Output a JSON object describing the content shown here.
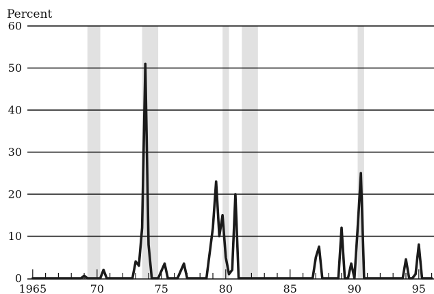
{
  "chart_data": {
    "type": "line",
    "title": "",
    "ylabel": "Percent",
    "xlabel": "",
    "xlim": [
      1965.0,
      1996.0
    ],
    "ylim": [
      0,
      60
    ],
    "y_ticks": [
      0,
      10,
      20,
      30,
      40,
      50,
      60
    ],
    "x_ticks": [
      {
        "value": 1965,
        "label": "1965"
      },
      {
        "value": 1970,
        "label": "70"
      },
      {
        "value": 1975,
        "label": "75"
      },
      {
        "value": 1980,
        "label": "80"
      },
      {
        "value": 1985,
        "label": "85"
      },
      {
        "value": 1990,
        "label": "90"
      },
      {
        "value": 1995,
        "label": "95"
      }
    ],
    "grid": {
      "horizontal": true,
      "vertical": false
    },
    "recessions": [
      [
        1969.25,
        1970.25
      ],
      [
        1973.5,
        1974.75
      ],
      [
        1979.75,
        1980.25
      ],
      [
        1981.25,
        1982.5
      ],
      [
        1990.25,
        1990.75
      ]
    ],
    "series": [
      {
        "points": [
          [
            1965.0,
            0
          ],
          [
            1967.0,
            0
          ],
          [
            1967.5,
            0
          ],
          [
            1968.0,
            0
          ],
          [
            1968.75,
            0
          ],
          [
            1969.0,
            0.6
          ],
          [
            1969.25,
            0
          ],
          [
            1970.0,
            0
          ],
          [
            1970.25,
            0
          ],
          [
            1970.5,
            2
          ],
          [
            1970.75,
            0
          ],
          [
            1971.5,
            0
          ],
          [
            1972.5,
            0
          ],
          [
            1972.75,
            0
          ],
          [
            1973.0,
            4
          ],
          [
            1973.25,
            3
          ],
          [
            1973.5,
            12
          ],
          [
            1973.75,
            51
          ],
          [
            1974.0,
            8
          ],
          [
            1974.25,
            0
          ],
          [
            1974.75,
            0
          ],
          [
            1975.25,
            3.5
          ],
          [
            1975.5,
            0
          ],
          [
            1976.25,
            0
          ],
          [
            1976.75,
            3.5
          ],
          [
            1977.0,
            0
          ],
          [
            1978.25,
            0
          ],
          [
            1978.5,
            0
          ],
          [
            1979.0,
            12
          ],
          [
            1979.25,
            23
          ],
          [
            1979.5,
            10
          ],
          [
            1979.75,
            15
          ],
          [
            1980.0,
            5
          ],
          [
            1980.25,
            1
          ],
          [
            1980.5,
            2
          ],
          [
            1980.75,
            20
          ],
          [
            1981.0,
            0
          ],
          [
            1982.0,
            0
          ],
          [
            1984.0,
            0
          ],
          [
            1986.5,
            0
          ],
          [
            1986.75,
            0
          ],
          [
            1987.0,
            5
          ],
          [
            1987.25,
            7.5
          ],
          [
            1987.5,
            0
          ],
          [
            1988.0,
            0
          ],
          [
            1988.5,
            0
          ],
          [
            1988.75,
            0
          ],
          [
            1989.0,
            12
          ],
          [
            1989.25,
            0
          ],
          [
            1989.5,
            0
          ],
          [
            1989.75,
            3.5
          ],
          [
            1990.0,
            0
          ],
          [
            1990.25,
            12
          ],
          [
            1990.5,
            25
          ],
          [
            1990.75,
            0
          ],
          [
            1992.0,
            0
          ],
          [
            1993.5,
            0
          ],
          [
            1993.75,
            0
          ],
          [
            1994.0,
            4.5
          ],
          [
            1994.25,
            0
          ],
          [
            1994.5,
            0
          ],
          [
            1994.75,
            1
          ],
          [
            1995.0,
            8
          ],
          [
            1995.25,
            0
          ],
          [
            1995.5,
            0
          ],
          [
            1996.0,
            0
          ]
        ]
      }
    ]
  }
}
